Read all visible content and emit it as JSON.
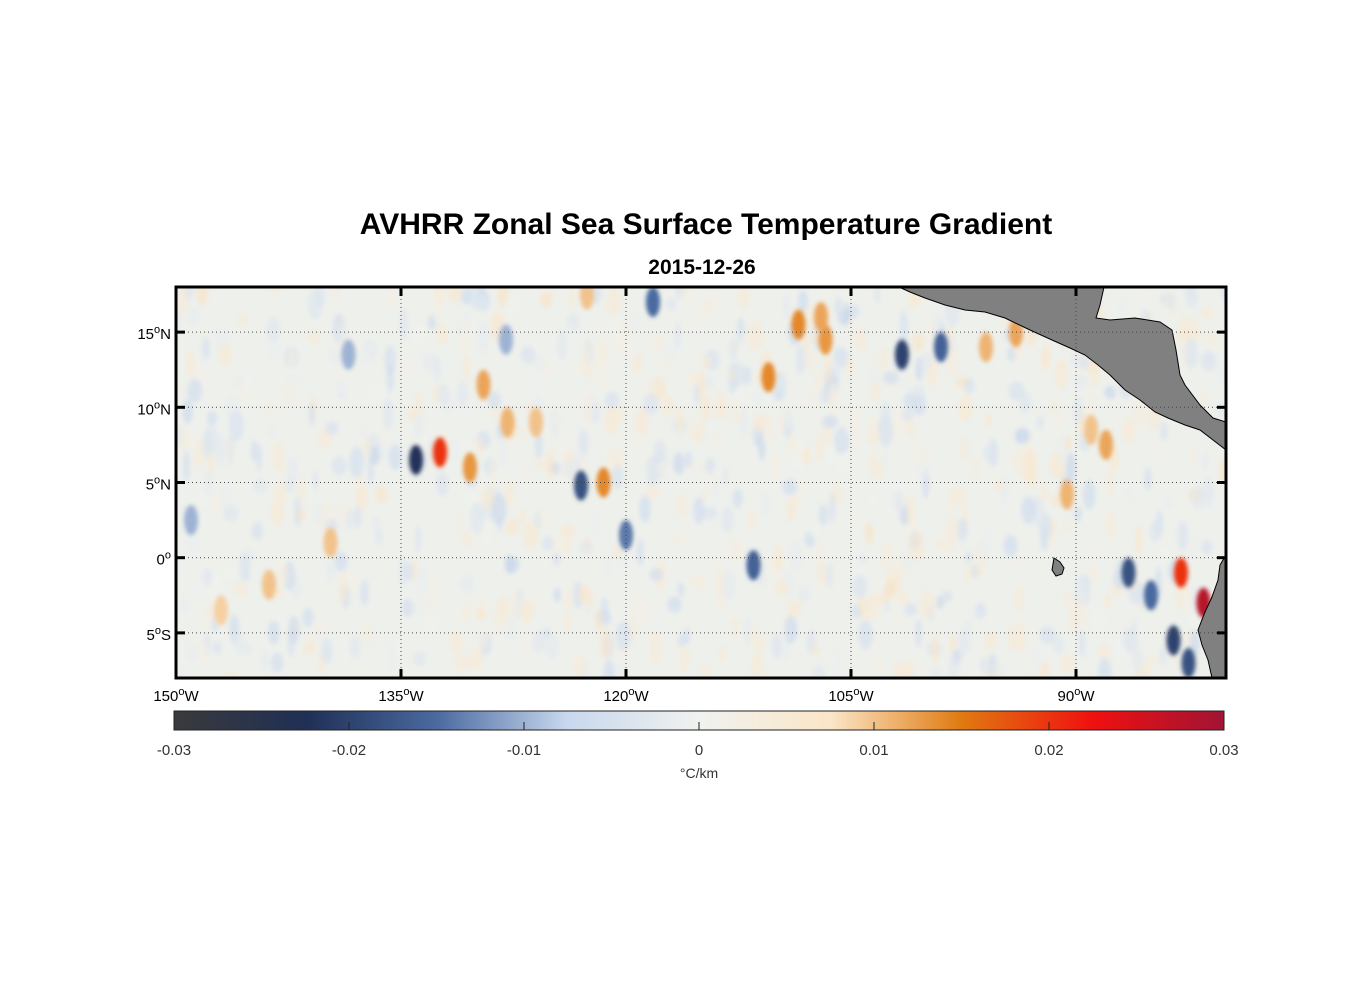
{
  "title": "AVHRR Zonal Sea Surface Temperature Gradient",
  "subtitle": "2015-12-26",
  "map": {
    "projection": "equirectangular",
    "lon_range": [
      -150,
      -80
    ],
    "lat_range": [
      -8,
      18
    ],
    "grid": "dotted",
    "land_color": "#808080",
    "lon_ticks": [
      {
        "value": -150,
        "num": "150",
        "hem": "W"
      },
      {
        "value": -135,
        "num": "135",
        "hem": "W"
      },
      {
        "value": -120,
        "num": "120",
        "hem": "W"
      },
      {
        "value": -105,
        "num": "105",
        "hem": "W"
      },
      {
        "value": -90,
        "num": "90",
        "hem": "W"
      }
    ],
    "lat_ticks": [
      {
        "value": 15,
        "num": "15",
        "hem": "N"
      },
      {
        "value": 10,
        "num": "10",
        "hem": "N"
      },
      {
        "value": 5,
        "num": "5",
        "hem": "N"
      },
      {
        "value": 0,
        "num": "0",
        "hem": ""
      },
      {
        "value": -5,
        "num": "5",
        "hem": "S"
      }
    ]
  },
  "colorbar": {
    "min": -0.03,
    "max": 0.03,
    "ticks": [
      {
        "value": -0.03,
        "label": "-0.03"
      },
      {
        "value": -0.02,
        "label": "-0.02"
      },
      {
        "value": -0.01,
        "label": "-0.01"
      },
      {
        "value": 0,
        "label": "0"
      },
      {
        "value": 0.01,
        "label": "0.01"
      },
      {
        "value": 0.02,
        "label": "0.02"
      },
      {
        "value": 0.03,
        "label": "0.03"
      }
    ],
    "unit": "°C/km",
    "colors": [
      "#3a3a3c",
      "#1f2f55",
      "#4a6aa0",
      "#c8d8ee",
      "#f0f2ef",
      "#fbe6c8",
      "#e07a10",
      "#f01010",
      "#a01434"
    ]
  },
  "chart_data": {
    "type": "heatmap",
    "title": "AVHRR Zonal Sea Surface Temperature Gradient",
    "subtitle": "2015-12-26",
    "x_axis": "longitude",
    "y_axis": "latitude",
    "xlim": [
      -150,
      -80
    ],
    "ylim": [
      -8,
      18
    ],
    "color_range": [
      -0.03,
      0.03
    ],
    "color_unit": "°C/km",
    "features": [
      {
        "lon": -134.0,
        "lat": 6.5,
        "value": -0.022
      },
      {
        "lon": -132.4,
        "lat": 7.0,
        "value": 0.02
      },
      {
        "lon": -130.4,
        "lat": 6.0,
        "value": 0.013
      },
      {
        "lon": -129.5,
        "lat": 11.5,
        "value": 0.012
      },
      {
        "lon": -127.9,
        "lat": 9.0,
        "value": 0.011
      },
      {
        "lon": -126.0,
        "lat": 9.0,
        "value": 0.01
      },
      {
        "lon": -123.0,
        "lat": 4.8,
        "value": -0.018
      },
      {
        "lon": -121.5,
        "lat": 5.0,
        "value": 0.014
      },
      {
        "lon": -122.6,
        "lat": 17.5,
        "value": 0.01
      },
      {
        "lon": -118.2,
        "lat": 17.0,
        "value": -0.015
      },
      {
        "lon": -110.5,
        "lat": 12.0,
        "value": 0.014
      },
      {
        "lon": -108.5,
        "lat": 15.5,
        "value": 0.014
      },
      {
        "lon": -106.7,
        "lat": 14.5,
        "value": 0.013
      },
      {
        "lon": -107.0,
        "lat": 16.0,
        "value": 0.012
      },
      {
        "lon": -101.6,
        "lat": 13.5,
        "value": -0.02
      },
      {
        "lon": -99.0,
        "lat": 14.0,
        "value": -0.016
      },
      {
        "lon": -96.0,
        "lat": 14.0,
        "value": 0.011
      },
      {
        "lon": -94.0,
        "lat": 15.0,
        "value": 0.012
      },
      {
        "lon": -89.0,
        "lat": 8.5,
        "value": 0.01
      },
      {
        "lon": -88.0,
        "lat": 7.5,
        "value": 0.012
      },
      {
        "lon": -90.6,
        "lat": 4.2,
        "value": 0.011
      },
      {
        "lon": -83.0,
        "lat": -1.0,
        "value": 0.02
      },
      {
        "lon": -81.5,
        "lat": -3.0,
        "value": 0.028
      },
      {
        "lon": -86.5,
        "lat": -1.0,
        "value": -0.018
      },
      {
        "lon": -85.0,
        "lat": -2.5,
        "value": -0.015
      },
      {
        "lon": -83.5,
        "lat": -5.5,
        "value": -0.02
      },
      {
        "lon": -82.5,
        "lat": -7.0,
        "value": -0.018
      },
      {
        "lon": -120.0,
        "lat": 1.5,
        "value": -0.014
      },
      {
        "lon": -111.5,
        "lat": -0.5,
        "value": -0.016
      },
      {
        "lon": -138.5,
        "lat": 13.5,
        "value": -0.01
      },
      {
        "lon": -128.0,
        "lat": 14.5,
        "value": -0.01
      },
      {
        "lon": -149.0,
        "lat": 2.5,
        "value": -0.01
      },
      {
        "lon": -147.0,
        "lat": -3.5,
        "value": 0.009
      },
      {
        "lon": -143.8,
        "lat": -1.8,
        "value": 0.01
      },
      {
        "lon": -139.7,
        "lat": 1.0,
        "value": 0.01
      }
    ]
  }
}
